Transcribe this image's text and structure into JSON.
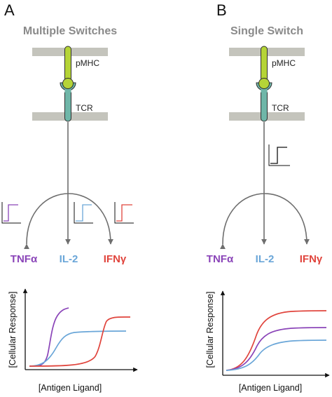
{
  "panels": [
    {
      "letter": "A",
      "title": "Multiple Switches",
      "pmhc_label": "pMHC",
      "tcr_label": "TCR",
      "cytokines": [
        {
          "label": "TNFα",
          "color": "#8a44b8"
        },
        {
          "label": "IL-2",
          "color": "#6aa6d8"
        },
        {
          "label": "IFNγ",
          "color": "#e0443c"
        }
      ],
      "ylabel": "[Cellular Response]",
      "xlabel": "[Antigen Ligand]"
    },
    {
      "letter": "B",
      "title": "Single Switch",
      "pmhc_label": "pMHC",
      "tcr_label": "TCR",
      "cytokines": [
        {
          "label": "TNFα",
          "color": "#8a44b8"
        },
        {
          "label": "IL-2",
          "color": "#6aa6d8"
        },
        {
          "label": "IFNγ",
          "color": "#e0443c"
        }
      ],
      "ylabel": "[Cellular Response]",
      "xlabel": "[Antigen Ligand]"
    }
  ],
  "colors": {
    "membrane": "#c4c4bc",
    "pmhc": "#b5d437",
    "tcr": "#6fb6a8",
    "arrow": "#6e6e6e"
  }
}
